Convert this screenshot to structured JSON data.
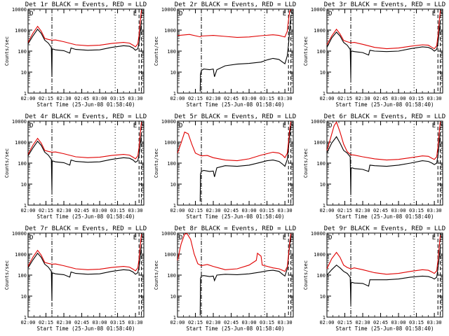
{
  "figure": {
    "xticks": [
      "02:00",
      "02:15",
      "02:30",
      "02:45",
      "03:00",
      "03:15",
      "03:30"
    ],
    "yticks": [
      "1",
      "10",
      "100",
      "1000",
      "10000"
    ],
    "ylabel": "Counts/sec",
    "xlabel": "Start Time (25-Jun-08 01:58:40)",
    "corner_left": "D",
    "corner_mid": "E",
    "corner_right": "S",
    "colors": {
      "events": "#000000",
      "lld": "#e00000"
    }
  },
  "chart_data": [
    {
      "type": "line",
      "title": "Det 1r BLACK = Events, RED = LLD",
      "x_unit": "minutes after 02:00",
      "xlim": [
        0,
        97
      ],
      "ylim": [
        1,
        10000
      ],
      "yscale": "log",
      "series": [
        {
          "name": "Events",
          "x": [
            0,
            4,
            8,
            11,
            14,
            17,
            19.5,
            20,
            20.2,
            21,
            23,
            30,
            35,
            36,
            40,
            50,
            60,
            70,
            80,
            85,
            88,
            90,
            92,
            93,
            94,
            95
          ],
          "y": [
            220,
            520,
            1100,
            700,
            330,
            240,
            150,
            6,
            120,
            125,
            115,
            105,
            80,
            140,
            120,
            110,
            115,
            150,
            180,
            170,
            140,
            110,
            130,
            250,
            700,
            2500
          ]
        },
        {
          "name": "LLD",
          "x": [
            0,
            4,
            8,
            11,
            14,
            17,
            20,
            23,
            30,
            40,
            50,
            60,
            70,
            80,
            85,
            88,
            90,
            92,
            93,
            94,
            95
          ],
          "y": [
            260,
            700,
            1500,
            900,
            400,
            360,
            330,
            340,
            280,
            200,
            180,
            190,
            230,
            260,
            240,
            190,
            160,
            220,
            600,
            2500,
            9000
          ]
        }
      ]
    },
    {
      "type": "line",
      "title": "Det 2r BLACK = Events, RED = LLD",
      "x_unit": "minutes after 02:00",
      "xlim": [
        0,
        97
      ],
      "ylim": [
        1,
        10000
      ],
      "yscale": "log",
      "series": [
        {
          "name": "Events",
          "x": [
            19,
            19.3,
            20,
            22,
            27,
            30,
            31,
            33,
            40,
            50,
            60,
            70,
            75,
            80,
            85,
            88,
            90,
            92,
            93,
            94,
            95
          ],
          "y": [
            1.2,
            8,
            12,
            14,
            13,
            14,
            6,
            13,
            20,
            24,
            26,
            30,
            38,
            45,
            40,
            30,
            25,
            60,
            200,
            1000,
            5000
          ]
        },
        {
          "name": "LLD",
          "x": [
            0,
            10,
            19,
            20,
            30,
            40,
            50,
            60,
            70,
            80,
            85,
            88,
            90,
            92,
            93,
            94,
            95
          ],
          "y": [
            550,
            620,
            480,
            520,
            560,
            500,
            450,
            470,
            540,
            600,
            560,
            500,
            470,
            900,
            3000,
            8000,
            9500
          ]
        }
      ]
    },
    {
      "type": "line",
      "title": "Det 3r BLACK = Events, RED = LLD",
      "x_unit": "minutes after 02:00",
      "xlim": [
        0,
        97
      ],
      "ylim": [
        1,
        10000
      ],
      "yscale": "log",
      "series": [
        {
          "name": "Events",
          "x": [
            0,
            4,
            8,
            11,
            14,
            17,
            19.5,
            20,
            20.2,
            21,
            23,
            30,
            35,
            36,
            40,
            50,
            60,
            70,
            80,
            85,
            88,
            90,
            92,
            93,
            94,
            95
          ],
          "y": [
            150,
            420,
            800,
            520,
            260,
            190,
            120,
            5,
            95,
            100,
            95,
            85,
            65,
            110,
            100,
            95,
            100,
            130,
            160,
            150,
            125,
            100,
            120,
            240,
            700,
            2600
          ]
        },
        {
          "name": "LLD",
          "x": [
            0,
            4,
            8,
            11,
            14,
            17,
            20,
            23,
            30,
            40,
            50,
            60,
            70,
            80,
            85,
            88,
            90,
            92,
            93,
            94,
            95
          ],
          "y": [
            200,
            520,
            1100,
            650,
            320,
            280,
            250,
            260,
            210,
            150,
            130,
            140,
            170,
            200,
            190,
            150,
            130,
            180,
            520,
            2200,
            8500
          ]
        }
      ]
    },
    {
      "type": "line",
      "title": "Det 4r BLACK = Events, RED = LLD",
      "x_unit": "minutes after 02:00",
      "xlim": [
        0,
        97
      ],
      "ylim": [
        1,
        10000
      ],
      "yscale": "log",
      "series": [
        {
          "name": "Events",
          "x": [
            0,
            4,
            8,
            11,
            14,
            17,
            19.5,
            20,
            20.2,
            21,
            23,
            30,
            35,
            36,
            40,
            50,
            60,
            70,
            80,
            85,
            88,
            90,
            92,
            93,
            94,
            95
          ],
          "y": [
            220,
            520,
            1100,
            700,
            330,
            240,
            150,
            5,
            120,
            125,
            115,
            105,
            80,
            140,
            120,
            110,
            115,
            150,
            180,
            170,
            140,
            110,
            130,
            250,
            700,
            2500
          ]
        },
        {
          "name": "LLD",
          "x": [
            0,
            4,
            8,
            11,
            14,
            17,
            20,
            23,
            30,
            40,
            50,
            60,
            70,
            80,
            85,
            88,
            90,
            92,
            93,
            94,
            95
          ],
          "y": [
            260,
            700,
            1500,
            900,
            400,
            360,
            330,
            340,
            280,
            200,
            180,
            190,
            230,
            260,
            240,
            190,
            160,
            220,
            600,
            2500,
            9000
          ]
        }
      ]
    },
    {
      "type": "line",
      "title": "Det 5r BLACK = Events, RED = LLD",
      "x_unit": "minutes after 02:00",
      "xlim": [
        0,
        97
      ],
      "ylim": [
        1,
        10000
      ],
      "yscale": "log",
      "series": [
        {
          "name": "Events",
          "x": [
            19,
            19.3,
            20,
            22,
            27,
            30,
            31,
            33,
            40,
            50,
            60,
            70,
            75,
            80,
            85,
            88,
            90,
            92,
            93,
            94,
            95
          ],
          "y": [
            1.5,
            30,
            40,
            45,
            40,
            42,
            22,
            60,
            75,
            70,
            80,
            110,
            130,
            140,
            120,
            90,
            70,
            150,
            500,
            2000,
            6000
          ]
        },
        {
          "name": "LLD",
          "x": [
            0,
            3,
            6,
            9,
            12,
            15,
            20,
            25,
            30,
            40,
            50,
            60,
            70,
            80,
            85,
            88,
            90,
            92,
            93,
            94,
            95
          ],
          "y": [
            300,
            900,
            3000,
            2500,
            800,
            300,
            220,
            230,
            180,
            140,
            130,
            160,
            240,
            330,
            300,
            240,
            180,
            300,
            1000,
            4000,
            9500
          ]
        }
      ]
    },
    {
      "type": "line",
      "title": "Det 6r BLACK = Events, RED = LLD",
      "x_unit": "minutes after 02:00",
      "xlim": [
        0,
        97
      ],
      "ylim": [
        1,
        10000
      ],
      "yscale": "log",
      "series": [
        {
          "name": "Events",
          "x": [
            0,
            4,
            8,
            11,
            14,
            17,
            19.5,
            20,
            20.2,
            21,
            23,
            30,
            35,
            36,
            40,
            50,
            60,
            70,
            80,
            85,
            88,
            90,
            92,
            93,
            94,
            95
          ],
          "y": [
            300,
            900,
            1800,
            900,
            400,
            300,
            200,
            3,
            55,
            60,
            55,
            50,
            40,
            80,
            75,
            70,
            80,
            100,
            130,
            120,
            100,
            85,
            100,
            220,
            700,
            3000
          ]
        },
        {
          "name": "LLD",
          "x": [
            0,
            3,
            6,
            8,
            11,
            14,
            17,
            20,
            23,
            30,
            40,
            50,
            60,
            70,
            80,
            85,
            88,
            90,
            92,
            93,
            94,
            95
          ],
          "y": [
            400,
            1500,
            6000,
            9000,
            3000,
            800,
            350,
            250,
            240,
            200,
            160,
            140,
            150,
            180,
            220,
            210,
            170,
            150,
            200,
            600,
            2500,
            9500
          ]
        }
      ]
    },
    {
      "type": "line",
      "title": "Det 7r BLACK = Events, RED = LLD",
      "x_unit": "minutes after 02:00",
      "xlim": [
        0,
        97
      ],
      "ylim": [
        1,
        10000
      ],
      "yscale": "log",
      "series": [
        {
          "name": "Events",
          "x": [
            0,
            4,
            8,
            11,
            14,
            17,
            19.5,
            20,
            20.2,
            21,
            23,
            30,
            35,
            36,
            40,
            50,
            60,
            70,
            80,
            85,
            88,
            90,
            92,
            93,
            94,
            95
          ],
          "y": [
            220,
            520,
            1100,
            700,
            330,
            240,
            150,
            6,
            120,
            125,
            115,
            105,
            80,
            140,
            120,
            110,
            115,
            150,
            180,
            170,
            140,
            110,
            130,
            250,
            700,
            2500
          ]
        },
        {
          "name": "LLD",
          "x": [
            0,
            4,
            8,
            11,
            14,
            17,
            20,
            23,
            30,
            40,
            50,
            60,
            70,
            80,
            85,
            88,
            90,
            92,
            93,
            94,
            95
          ],
          "y": [
            260,
            700,
            1500,
            900,
            400,
            360,
            330,
            340,
            280,
            200,
            180,
            190,
            230,
            260,
            240,
            190,
            160,
            220,
            600,
            2500,
            9000
          ]
        }
      ]
    },
    {
      "type": "line",
      "title": "Det 8r BLACK = Events, RED = LLD",
      "x_unit": "minutes after 02:00",
      "xlim": [
        0,
        97
      ],
      "ylim": [
        1,
        10000
      ],
      "yscale": "log",
      "series": [
        {
          "name": "Events",
          "x": [
            19,
            19.3,
            20,
            22,
            27,
            30,
            31,
            33,
            40,
            50,
            60,
            70,
            75,
            80,
            85,
            88,
            90,
            92,
            93,
            94,
            95
          ],
          "y": [
            1.2,
            70,
            90,
            95,
            85,
            90,
            55,
            100,
            110,
            105,
            115,
            140,
            160,
            170,
            150,
            110,
            90,
            200,
            700,
            2500,
            7000
          ]
        },
        {
          "name": "LLD",
          "x": [
            0,
            3,
            6,
            8,
            11,
            14,
            17,
            20,
            25,
            30,
            40,
            50,
            60,
            66,
            67,
            70,
            71,
            80,
            85,
            88,
            90,
            92,
            93,
            94,
            95
          ],
          "y": [
            500,
            3000,
            9000,
            9500,
            5000,
            1000,
            350,
            280,
            320,
            260,
            180,
            200,
            300,
            500,
            1100,
            800,
            300,
            220,
            200,
            170,
            150,
            250,
            900,
            3500,
            9500
          ]
        }
      ]
    },
    {
      "type": "line",
      "title": "Det 9r BLACK = Events, RED = LLD",
      "x_unit": "minutes after 02:00",
      "xlim": [
        0,
        97
      ],
      "ylim": [
        1,
        10000
      ],
      "yscale": "log",
      "series": [
        {
          "name": "Events",
          "x": [
            0,
            4,
            8,
            11,
            14,
            17,
            19.5,
            20,
            20.2,
            21,
            23,
            30,
            35,
            36,
            40,
            50,
            60,
            70,
            80,
            85,
            88,
            90,
            92,
            93,
            94,
            95
          ],
          "y": [
            100,
            180,
            300,
            220,
            150,
            120,
            80,
            4,
            40,
            45,
            42,
            40,
            30,
            60,
            60,
            60,
            65,
            80,
            90,
            85,
            75,
            65,
            80,
            200,
            600,
            2000
          ]
        },
        {
          "name": "LLD",
          "x": [
            0,
            4,
            8,
            11,
            14,
            17,
            20,
            23,
            30,
            40,
            50,
            60,
            70,
            80,
            85,
            88,
            90,
            92,
            93,
            94,
            95
          ],
          "y": [
            200,
            600,
            1200,
            700,
            300,
            230,
            200,
            220,
            180,
            130,
            110,
            120,
            150,
            180,
            170,
            140,
            120,
            160,
            500,
            2000,
            8000
          ]
        }
      ]
    }
  ]
}
